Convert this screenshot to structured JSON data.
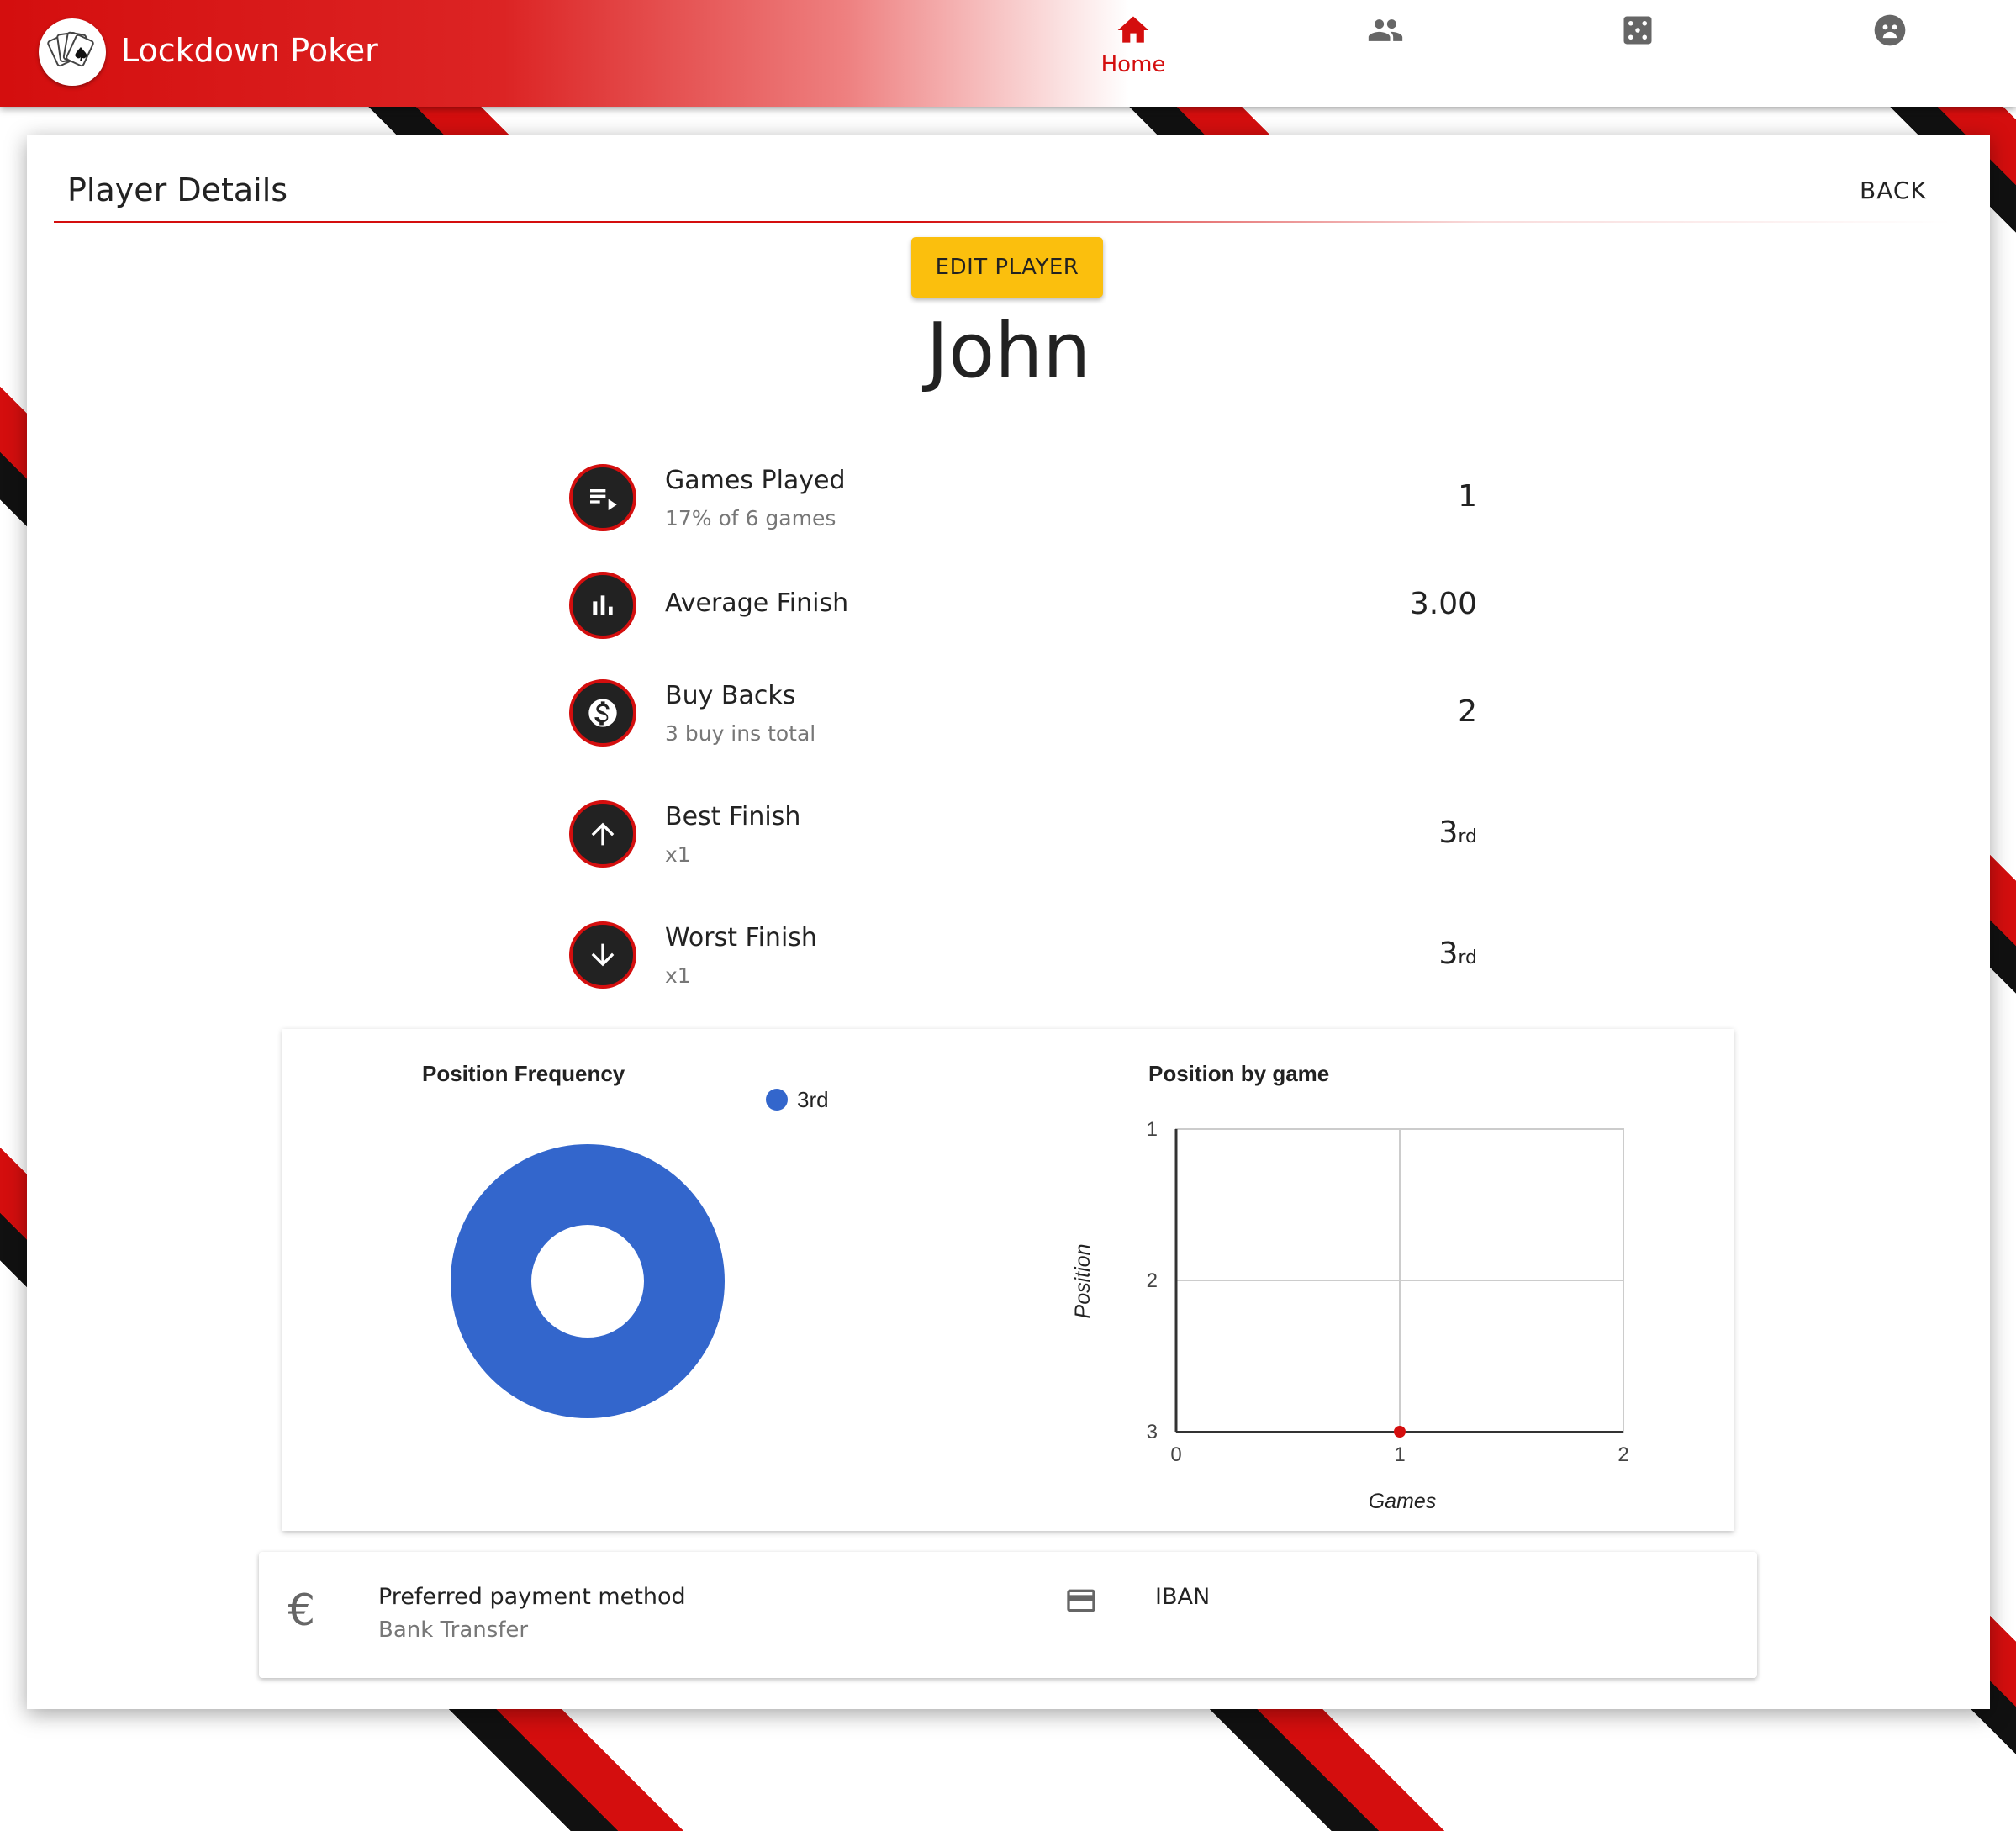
{
  "app": {
    "title": "Lockdown Poker",
    "brand_color": "#d40e0e",
    "nav": [
      {
        "label": "Home",
        "icon": "home-icon",
        "active": true
      },
      {
        "label": "",
        "icon": "people-icon",
        "active": false
      },
      {
        "label": "",
        "icon": "dice-icon",
        "active": false
      },
      {
        "label": "",
        "icon": "face-icon",
        "active": false
      }
    ]
  },
  "page": {
    "title": "Player Details",
    "back_label": "BACK",
    "edit_label": "EDIT PLAYER",
    "edit_color": "#fbbf0d",
    "player_name": "John"
  },
  "stats": [
    {
      "label": "Games Played",
      "sub": "17% of 6 games",
      "value": "1",
      "suffix": "",
      "icon": "playlist-icon"
    },
    {
      "label": "Average Finish",
      "sub": "",
      "value": "3.00",
      "suffix": "",
      "icon": "bar-chart-icon"
    },
    {
      "label": "Buy Backs",
      "sub": "3 buy ins total",
      "value": "2",
      "suffix": "",
      "icon": "dollar-icon"
    },
    {
      "label": "Best Finish",
      "sub": "x1",
      "value": "3",
      "suffix": "rd",
      "icon": "arrow-up-icon"
    },
    {
      "label": "Worst Finish",
      "sub": "x1",
      "value": "3",
      "suffix": "rd",
      "icon": "arrow-down-icon"
    }
  ],
  "chart_data": [
    {
      "type": "pie",
      "title": "Position Frequency",
      "labels": [
        "3rd"
      ],
      "values": [
        1
      ],
      "colors": [
        "#3366cc"
      ],
      "legend": "right"
    },
    {
      "type": "scatter",
      "title": "Position by game",
      "xlabel": "Games",
      "ylabel": "Position",
      "x_ticks": [
        "0",
        "1",
        "2"
      ],
      "y_ticks": [
        "1",
        "2",
        "3"
      ],
      "xlim": [
        0,
        2
      ],
      "ylim": [
        1,
        3
      ],
      "y_reversed": true,
      "grid": true,
      "series": [
        {
          "x": [
            1
          ],
          "y": [
            3
          ],
          "color": "#d40e0e"
        }
      ]
    }
  ],
  "payment": {
    "label": "Preferred payment method",
    "value": "Bank Transfer",
    "detail": "IBAN"
  }
}
